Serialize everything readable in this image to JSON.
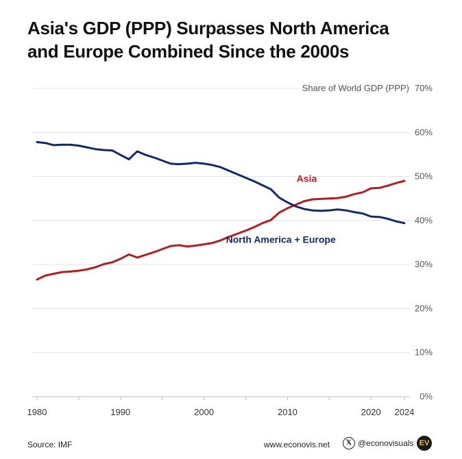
{
  "title_line1": "Asia's GDP (PPP) Surpasses North America",
  "title_line2": "and Europe Combined Since the 2000s",
  "footer": {
    "source": "Source: IMF",
    "website": "www.econovis.net",
    "handle": "@econovisuals",
    "logo_text": "EV"
  },
  "colors": {
    "asia": "#b81c22",
    "na_europe": "#14286b",
    "grid": "#e3e3e3"
  },
  "chart_data": {
    "type": "line",
    "title": "Asia's GDP (PPP) Surpasses North America and Europe Combined Since the 2000s",
    "ylabel": "Share of World GDP (PPP)",
    "xlabel": "",
    "ylim": [
      0,
      70
    ],
    "xlim": [
      1980,
      2024
    ],
    "grid": true,
    "y_ticks": [
      "0%",
      "10%",
      "20%",
      "30%",
      "40%",
      "50%",
      "60%",
      "70%"
    ],
    "y_tick_values": [
      0,
      10,
      20,
      30,
      40,
      50,
      60,
      70
    ],
    "x_ticks": [
      "1980",
      "1990",
      "2000",
      "2010",
      "2020",
      "2024"
    ],
    "x_tick_values": [
      1980,
      1990,
      2000,
      2010,
      2020,
      2024
    ],
    "x": [
      1980,
      1981,
      1982,
      1983,
      1984,
      1985,
      1986,
      1987,
      1988,
      1989,
      1990,
      1991,
      1992,
      1993,
      1994,
      1995,
      1996,
      1997,
      1998,
      1999,
      2000,
      2001,
      2002,
      2003,
      2004,
      2005,
      2006,
      2007,
      2008,
      2009,
      2010,
      2011,
      2012,
      2013,
      2014,
      2015,
      2016,
      2017,
      2018,
      2019,
      2020,
      2021,
      2022,
      2023,
      2024
    ],
    "series": [
      {
        "name": "Asia",
        "values": [
          26.6,
          27.5,
          27.9,
          28.3,
          28.4,
          28.6,
          28.9,
          29.4,
          30.1,
          30.5,
          31.3,
          32.3,
          31.6,
          32.2,
          32.8,
          33.5,
          34.2,
          34.4,
          34.1,
          34.3,
          34.6,
          34.9,
          35.5,
          36.3,
          37.0,
          37.7,
          38.5,
          39.4,
          40.1,
          41.8,
          42.8,
          43.6,
          44.4,
          44.8,
          44.9,
          45.0,
          45.1,
          45.4,
          46.0,
          46.4,
          47.3,
          47.4,
          47.9,
          48.5,
          49.0
        ]
      },
      {
        "name": "North America + Europe",
        "values": [
          57.8,
          57.6,
          57.1,
          57.2,
          57.2,
          57.0,
          56.6,
          56.2,
          56.0,
          55.9,
          54.9,
          53.9,
          55.7,
          54.9,
          54.3,
          53.6,
          52.9,
          52.8,
          52.9,
          53.1,
          52.9,
          52.6,
          52.1,
          51.3,
          50.5,
          49.7,
          48.9,
          48.0,
          47.1,
          45.2,
          44.1,
          43.2,
          42.6,
          42.3,
          42.2,
          42.3,
          42.5,
          42.3,
          41.9,
          41.6,
          40.9,
          40.8,
          40.4,
          39.8,
          39.4
        ]
      }
    ]
  }
}
